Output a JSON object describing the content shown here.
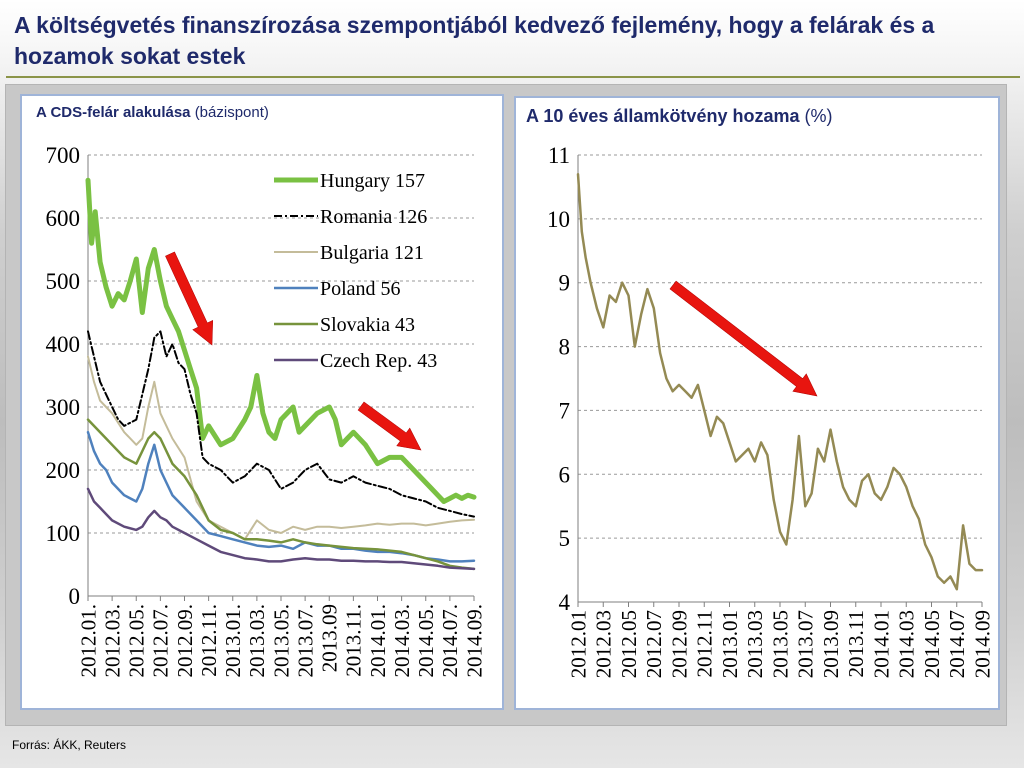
{
  "page": {
    "title": "A költségvetés finanszírozása szempontjából kedvező fejlemény, hogy a felárak és a hozamok sokat estek",
    "source": "Forrás: ÁKK, Reuters"
  },
  "colors": {
    "title": "#1f2a6b",
    "hungary": "#7ac143",
    "romania": "#000000",
    "bulgaria": "#c4bc9a",
    "poland": "#4f81bd",
    "slovakia": "#77933c",
    "czech": "#5f4a7a",
    "yield": "#948a54",
    "arrow": "#e8150f"
  },
  "chart_data": [
    {
      "type": "line",
      "title": "A CDS-felár alakulása",
      "unit": "(bázispont)",
      "ylim": [
        0,
        700
      ],
      "yticks": [
        "0",
        "100",
        "200",
        "300",
        "400",
        "500",
        "600",
        "700"
      ],
      "ytick_values": [
        0,
        100,
        200,
        300,
        400,
        500,
        600,
        700
      ],
      "xlim": [
        0,
        32
      ],
      "xtick_values": [
        0,
        2,
        4,
        6,
        8,
        10,
        12,
        14,
        16,
        18,
        20,
        22,
        24,
        26,
        28,
        30,
        32
      ],
      "xticks": [
        "2012.01.",
        "2012.03.",
        "2012.05.",
        "2012.07.",
        "2012.09.",
        "2012.11.",
        "2013.01.",
        "2013.03.",
        "2013.05.",
        "2013.07.",
        "2013.09",
        "2013.11.",
        "2014.01.",
        "2014.03.",
        "2014.05.",
        "2014.07.",
        "2014.09."
      ],
      "grid": true,
      "legend_position": "top-right",
      "series": [
        {
          "name": "Hungary 157",
          "key": "hungary",
          "x": [
            0,
            0.3,
            0.6,
            1,
            1.5,
            2,
            2.5,
            3,
            3.5,
            4,
            4.5,
            5,
            5.5,
            6,
            6.5,
            7,
            7.5,
            8,
            8.5,
            9,
            9.5,
            10,
            11,
            12,
            13,
            13.5,
            14,
            14.5,
            15,
            15.5,
            16,
            17,
            17.5,
            18,
            19,
            20,
            20.5,
            21,
            21.5,
            22,
            23,
            24,
            25,
            26,
            27,
            28,
            28.5,
            29,
            29.5,
            30,
            30.5,
            31,
            31.5,
            32
          ],
          "y": [
            660,
            560,
            610,
            530,
            490,
            460,
            480,
            470,
            500,
            535,
            450,
            520,
            550,
            500,
            460,
            440,
            420,
            390,
            360,
            330,
            250,
            270,
            240,
            250,
            280,
            300,
            350,
            290,
            260,
            250,
            280,
            300,
            260,
            270,
            290,
            300,
            280,
            240,
            250,
            260,
            240,
            210,
            220,
            220,
            200,
            180,
            170,
            160,
            150,
            155,
            160,
            155,
            160,
            157
          ]
        },
        {
          "name": "Romania 126",
          "key": "romania",
          "x": [
            0,
            0.5,
            1,
            1.5,
            2,
            2.5,
            3,
            4,
            4.5,
            5,
            5.5,
            6,
            6.5,
            7,
            7.5,
            8,
            8.5,
            9,
            9.5,
            10,
            11,
            12,
            13,
            14,
            15,
            16,
            17,
            18,
            19,
            20,
            21,
            22,
            23,
            24,
            25,
            26,
            27,
            28,
            29,
            30,
            31,
            32
          ],
          "y": [
            420,
            380,
            340,
            320,
            300,
            280,
            270,
            280,
            320,
            360,
            410,
            420,
            380,
            400,
            370,
            360,
            320,
            290,
            220,
            210,
            200,
            180,
            190,
            210,
            200,
            170,
            180,
            200,
            210,
            185,
            180,
            190,
            180,
            175,
            170,
            160,
            155,
            150,
            140,
            135,
            130,
            126
          ]
        },
        {
          "name": "Bulgaria 121",
          "key": "bulgaria",
          "x": [
            0,
            0.5,
            1,
            1.5,
            2,
            3,
            4,
            4.5,
            5,
            5.5,
            6,
            6.5,
            7,
            8,
            9,
            10,
            11,
            12,
            13,
            14,
            15,
            16,
            17,
            18,
            19,
            20,
            21,
            22,
            23,
            24,
            25,
            26,
            27,
            28,
            29,
            30,
            31,
            32
          ],
          "y": [
            380,
            340,
            310,
            300,
            290,
            260,
            240,
            250,
            300,
            340,
            290,
            270,
            250,
            220,
            150,
            120,
            110,
            100,
            90,
            120,
            105,
            100,
            110,
            105,
            110,
            110,
            108,
            110,
            112,
            115,
            113,
            115,
            115,
            112,
            115,
            118,
            120,
            121
          ]
        },
        {
          "name": "Poland 56",
          "key": "poland",
          "x": [
            0,
            0.5,
            1,
            1.5,
            2,
            3,
            4,
            4.5,
            5,
            5.5,
            6,
            6.5,
            7,
            8,
            9,
            10,
            11,
            12,
            13,
            14,
            15,
            16,
            17,
            18,
            19,
            20,
            21,
            22,
            23,
            24,
            25,
            26,
            27,
            28,
            29,
            30,
            31,
            32
          ],
          "y": [
            260,
            230,
            210,
            200,
            180,
            160,
            150,
            170,
            210,
            240,
            200,
            180,
            160,
            140,
            120,
            100,
            95,
            90,
            85,
            80,
            78,
            80,
            75,
            85,
            80,
            80,
            75,
            75,
            72,
            70,
            70,
            68,
            65,
            60,
            58,
            55,
            55,
            56
          ]
        },
        {
          "name": "Slovakia 43",
          "key": "slovakia",
          "x": [
            0,
            0.5,
            1,
            1.5,
            2,
            3,
            4,
            4.5,
            5,
            5.5,
            6,
            6.5,
            7,
            8,
            9,
            10,
            11,
            12,
            13,
            14,
            15,
            16,
            17,
            18,
            19,
            20,
            21,
            22,
            23,
            24,
            25,
            26,
            27,
            28,
            29,
            30,
            31,
            32
          ],
          "y": [
            280,
            270,
            260,
            250,
            240,
            220,
            210,
            230,
            250,
            260,
            250,
            230,
            210,
            190,
            160,
            120,
            105,
            100,
            90,
            90,
            88,
            85,
            90,
            85,
            82,
            80,
            78,
            76,
            75,
            74,
            72,
            70,
            65,
            60,
            55,
            48,
            45,
            43
          ]
        },
        {
          "name": "Czech Rep. 43",
          "key": "czech",
          "x": [
            0,
            0.5,
            1,
            1.5,
            2,
            3,
            4,
            4.5,
            5,
            5.5,
            6,
            6.5,
            7,
            8,
            9,
            10,
            11,
            12,
            13,
            14,
            15,
            16,
            17,
            18,
            19,
            20,
            21,
            22,
            23,
            24,
            25,
            26,
            27,
            28,
            29,
            30,
            31,
            32
          ],
          "y": [
            170,
            150,
            140,
            130,
            120,
            110,
            105,
            110,
            125,
            135,
            125,
            120,
            110,
            100,
            90,
            80,
            70,
            65,
            60,
            58,
            55,
            55,
            58,
            60,
            58,
            58,
            56,
            56,
            55,
            55,
            54,
            54,
            52,
            50,
            48,
            45,
            44,
            43
          ]
        }
      ]
    },
    {
      "type": "line",
      "title": "A 10 éves államkötvény hozama",
      "unit": "(%)",
      "ylim": [
        4,
        11
      ],
      "yticks": [
        "4",
        "5",
        "6",
        "7",
        "8",
        "9",
        "10",
        "11"
      ],
      "ytick_values": [
        4,
        5,
        6,
        7,
        8,
        9,
        10,
        11
      ],
      "xlim": [
        0,
        32
      ],
      "xtick_values": [
        0,
        2,
        4,
        6,
        8,
        10,
        12,
        14,
        16,
        18,
        20,
        22,
        24,
        26,
        28,
        30,
        32
      ],
      "xticks": [
        "2012.01",
        "2012.03",
        "2012.05",
        "2012.07",
        "2012.09",
        "2012.11",
        "2013.01",
        "2013.03",
        "2013.05",
        "2013.07",
        "2013.09",
        "2013.11",
        "2014.01",
        "2014.03",
        "2014.05",
        "2014.07",
        "2014.09"
      ],
      "grid": true,
      "series": [
        {
          "key": "yield",
          "x": [
            0,
            0.3,
            0.6,
            1,
            1.5,
            2,
            2.5,
            3,
            3.5,
            4,
            4.5,
            5,
            5.5,
            6,
            6.5,
            7,
            7.5,
            8,
            8.5,
            9,
            9.5,
            10,
            10.5,
            11,
            11.5,
            12,
            12.5,
            13,
            13.5,
            14,
            14.5,
            15,
            15.5,
            16,
            16.5,
            17,
            17.5,
            18,
            18.5,
            19,
            19.5,
            20,
            20.5,
            21,
            21.5,
            22,
            22.5,
            23,
            23.5,
            24,
            24.5,
            25,
            25.5,
            26,
            26.5,
            27,
            27.5,
            28,
            28.5,
            29,
            29.5,
            30,
            30.5,
            31,
            31.5,
            32
          ],
          "y": [
            10.7,
            9.8,
            9.4,
            9.0,
            8.6,
            8.3,
            8.8,
            8.7,
            9.0,
            8.8,
            8.0,
            8.5,
            8.9,
            8.6,
            7.9,
            7.5,
            7.3,
            7.4,
            7.3,
            7.2,
            7.4,
            7.0,
            6.6,
            6.9,
            6.8,
            6.5,
            6.2,
            6.3,
            6.4,
            6.2,
            6.5,
            6.3,
            5.6,
            5.1,
            4.9,
            5.6,
            6.6,
            5.5,
            5.7,
            6.4,
            6.2,
            6.7,
            6.2,
            5.8,
            5.6,
            5.5,
            5.9,
            6.0,
            5.7,
            5.6,
            5.8,
            6.1,
            6.0,
            5.8,
            5.5,
            5.3,
            4.9,
            4.7,
            4.4,
            4.3,
            4.4,
            4.2,
            5.2,
            4.6,
            4.5,
            4.5
          ]
        }
      ]
    }
  ]
}
